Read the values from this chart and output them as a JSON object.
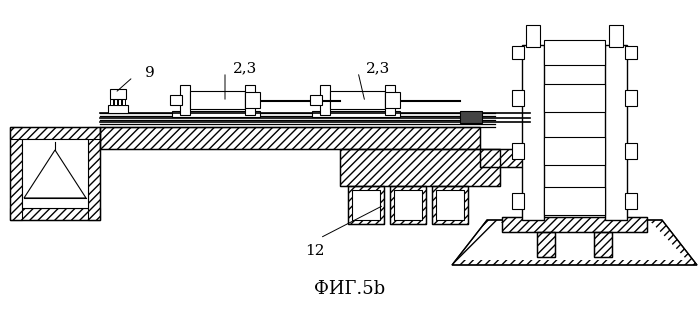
{
  "title": "ФИГ.5b",
  "title_fontsize": 13,
  "bg_color": "#ffffff",
  "line_color": "#000000"
}
